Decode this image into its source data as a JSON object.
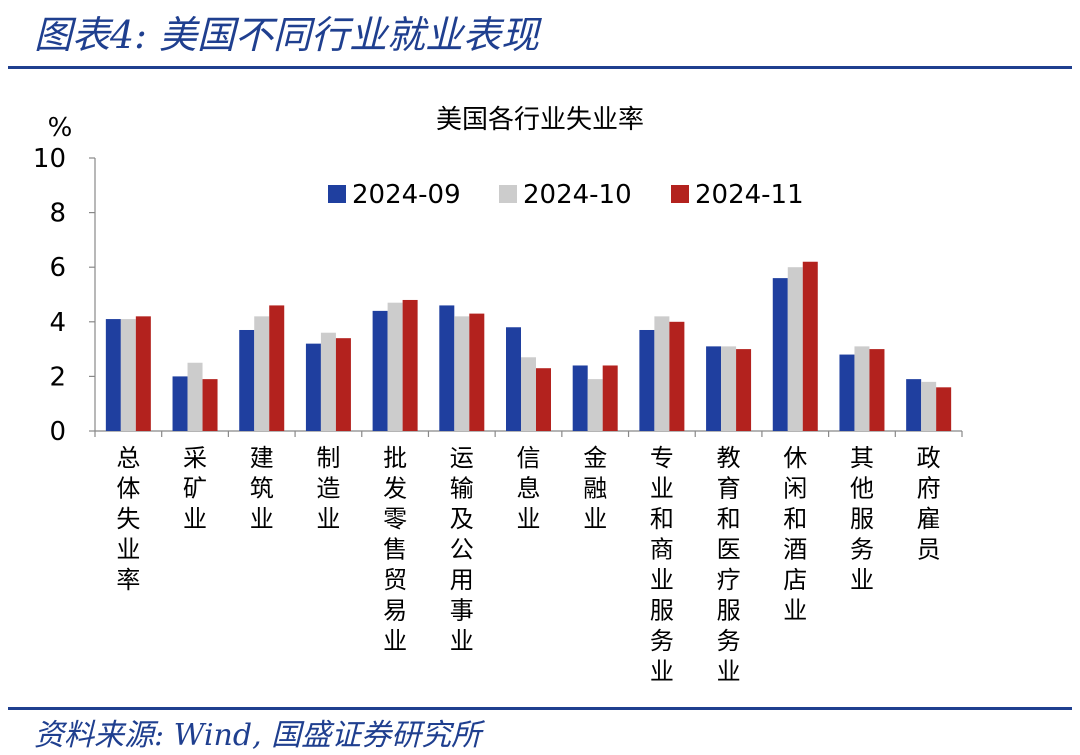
{
  "figure": {
    "title": "图表4:  美国不同行业就业表现",
    "source": "资料来源:  Wind,  国盛证券研究所"
  },
  "colors": {
    "rule": "#1f3f8f",
    "text_accent": "#1f3f8f",
    "series": [
      "#1f3f9f",
      "#cccccc",
      "#b3221e"
    ]
  },
  "chart_data": {
    "type": "bar",
    "title": "美国各行业失业率",
    "ylabel": "%",
    "xlabel": "",
    "ylim": [
      0,
      10
    ],
    "yticks": [
      0,
      2,
      4,
      6,
      8,
      10
    ],
    "legend_position": "top",
    "categories": [
      "总体失业率",
      "采矿业",
      "建筑业",
      "制造业",
      "批发零售贸易业",
      "运输及公用事业",
      "信息业",
      "金融业",
      "专业和商业服务业",
      "教育和医疗服务业",
      "休闲和酒店业",
      "其他服务业",
      "政府雇员"
    ],
    "series": [
      {
        "name": "2024-09",
        "values": [
          4.1,
          2.0,
          3.7,
          3.2,
          4.4,
          4.6,
          3.8,
          2.4,
          3.7,
          3.1,
          5.6,
          2.8,
          1.9
        ]
      },
      {
        "name": "2024-10",
        "values": [
          4.1,
          2.5,
          4.2,
          3.6,
          4.7,
          4.2,
          2.7,
          1.9,
          4.2,
          3.1,
          6.0,
          3.1,
          1.8
        ]
      },
      {
        "name": "2024-11",
        "values": [
          4.2,
          1.9,
          4.6,
          3.4,
          4.8,
          4.3,
          2.3,
          2.4,
          4.0,
          3.0,
          6.2,
          3.0,
          1.6
        ]
      }
    ]
  }
}
